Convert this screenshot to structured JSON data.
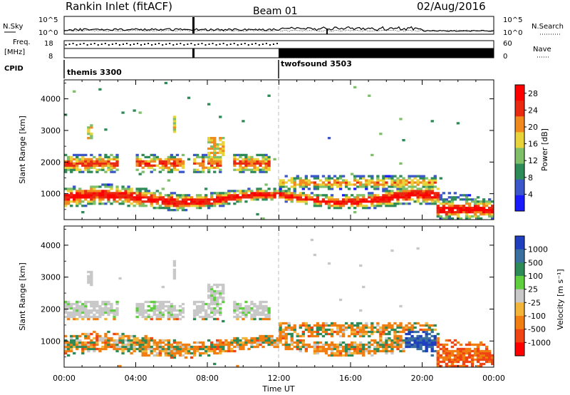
{
  "header": {
    "station": "Rankin Inlet (fitACF)",
    "beam": "Beam 01",
    "date": "02/Aug/2016"
  },
  "status_panels": {
    "nsky_label": "N.Sky",
    "nsky_ticks": [
      "10^5",
      "10^0"
    ],
    "nsearch_label": "N.Search",
    "nsearch_ticks": [
      "10^5",
      "10^0"
    ],
    "freq_label": "Freq.",
    "freq_unit": "[MHz]",
    "freq_ticks": [
      "18",
      "8"
    ],
    "nave_label": "Nave",
    "nave_ticks": [
      "60",
      "0"
    ],
    "cpid_label": "CPID",
    "modes": [
      {
        "name": "themis 3300",
        "start_hour": 0
      },
      {
        "name": "twofsound 3503",
        "start_hour": 12
      }
    ]
  },
  "time_axis": {
    "label": "Time UT",
    "ticks": [
      "00:00",
      "04:00",
      "08:00",
      "12:00",
      "16:00",
      "20:00",
      "00:00"
    ],
    "range_hours": [
      0,
      24
    ]
  },
  "chart_data": [
    {
      "type": "heatmap",
      "title": "",
      "xlabel": "Time UT",
      "ylabel": "Slant Range [km]",
      "xlim": [
        0,
        24
      ],
      "ylim": [
        180,
        4600
      ],
      "yticks": [
        "1000",
        "2000",
        "3000",
        "4000"
      ],
      "colorbar": {
        "label": "Power [dB]",
        "ticks": [
          "4",
          "8",
          "12",
          "16",
          "20",
          "24",
          "28"
        ],
        "range": [
          0,
          30
        ],
        "colors": [
          "#1a1aff",
          "#3b57c9",
          "#2e8a56",
          "#7fbf6a",
          "#e9d33a",
          "#f08a1e",
          "#ea2a10",
          "#ff0000"
        ]
      }
    },
    {
      "type": "heatmap",
      "title": "",
      "xlabel": "Time UT",
      "ylabel": "Slant Range [km]",
      "xlim": [
        0,
        24
      ],
      "ylim": [
        180,
        4600
      ],
      "yticks": [
        "1000",
        "2000",
        "3000",
        "4000"
      ],
      "colorbar": {
        "label": "Velocity [m s⁻¹]",
        "ticks": [
          "1000",
          "500",
          "100",
          "25",
          "-25",
          "-100",
          "-500",
          "-1000"
        ],
        "colors": [
          "#1f3fbf",
          "#3a70a0",
          "#2e8a56",
          "#5fcf3f",
          "#c8c8c8",
          "#f3b43a",
          "#f07e10",
          "#f04414",
          "#ff0000"
        ]
      }
    }
  ]
}
